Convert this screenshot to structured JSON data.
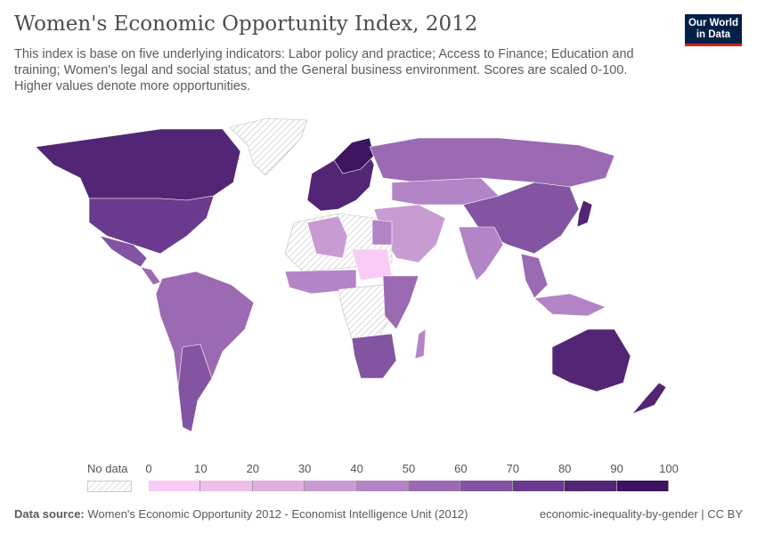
{
  "header": {
    "title": "Women's Economic Opportunity Index, 2012",
    "subtitle": "This index is base on five underlying indicators: Labor policy and practice; Access to Finance; Education and training; Women's legal and social status; and the General business environment. Scores are scaled 0-100. Higher values denote more opportunities.",
    "logo": "Our World in Data"
  },
  "legend": {
    "no_data_label": "No data",
    "ticks": [
      "0",
      "10",
      "20",
      "30",
      "40",
      "50",
      "60",
      "70",
      "80",
      "90",
      "100"
    ],
    "colors": [
      "#f9ccf6",
      "#eebfe9",
      "#e0b0e0",
      "#c99bd3",
      "#b384c6",
      "#9c6ab3",
      "#8354a2",
      "#6a3a8e",
      "#532675",
      "#3c1460"
    ]
  },
  "footer": {
    "source_label": "Data source:",
    "source_text": "Women's Economic Opportunity 2012 - Economist Intelligence Unit (2012)",
    "right": "economic-inequality-by-gender | CC BY"
  }
}
